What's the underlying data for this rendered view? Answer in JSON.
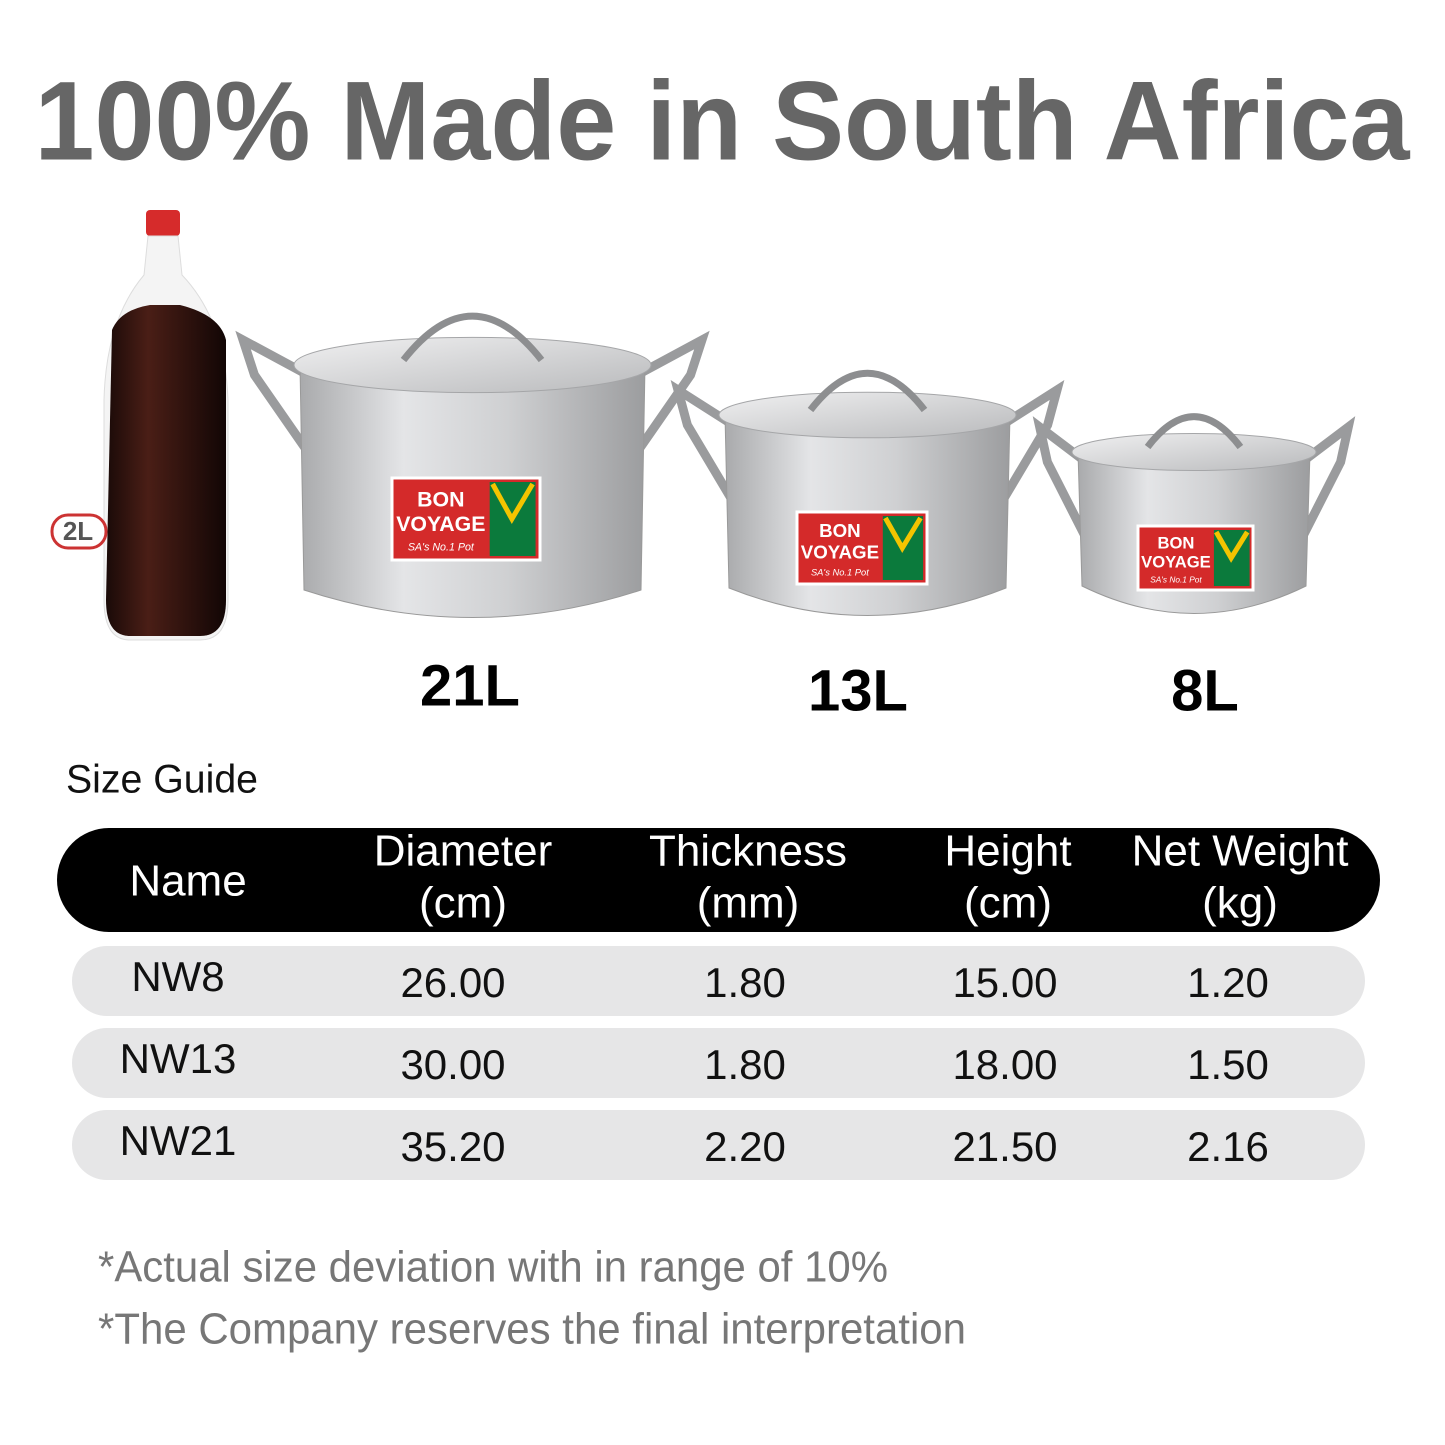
{
  "title": "100% Made in South Africa",
  "bottle_label": "2L",
  "sticker": {
    "line1": "BON",
    "line2": "VOYAGE",
    "tagline": "SA's No.1 Pot"
  },
  "pots": [
    {
      "label": "21L"
    },
    {
      "label": "13L"
    },
    {
      "label": "8L"
    }
  ],
  "size_guide": {
    "title": "Size Guide",
    "headers": [
      [
        "Name"
      ],
      [
        "Diameter",
        "(cm)"
      ],
      [
        "Thickness",
        "(mm)"
      ],
      [
        "Height",
        "(cm)"
      ],
      [
        "Net Weight",
        "(kg)"
      ]
    ],
    "rows": [
      [
        "NW8",
        "26.00",
        "1.80",
        "15.00",
        "1.20"
      ],
      [
        "NW13",
        "30.00",
        "1.80",
        "18.00",
        "1.50"
      ],
      [
        "NW21",
        "35.20",
        "2.20",
        "21.50",
        "2.16"
      ]
    ]
  },
  "notes": [
    "*Actual size deviation with in range of 10%",
    "*The Company reserves the final interpretation"
  ]
}
